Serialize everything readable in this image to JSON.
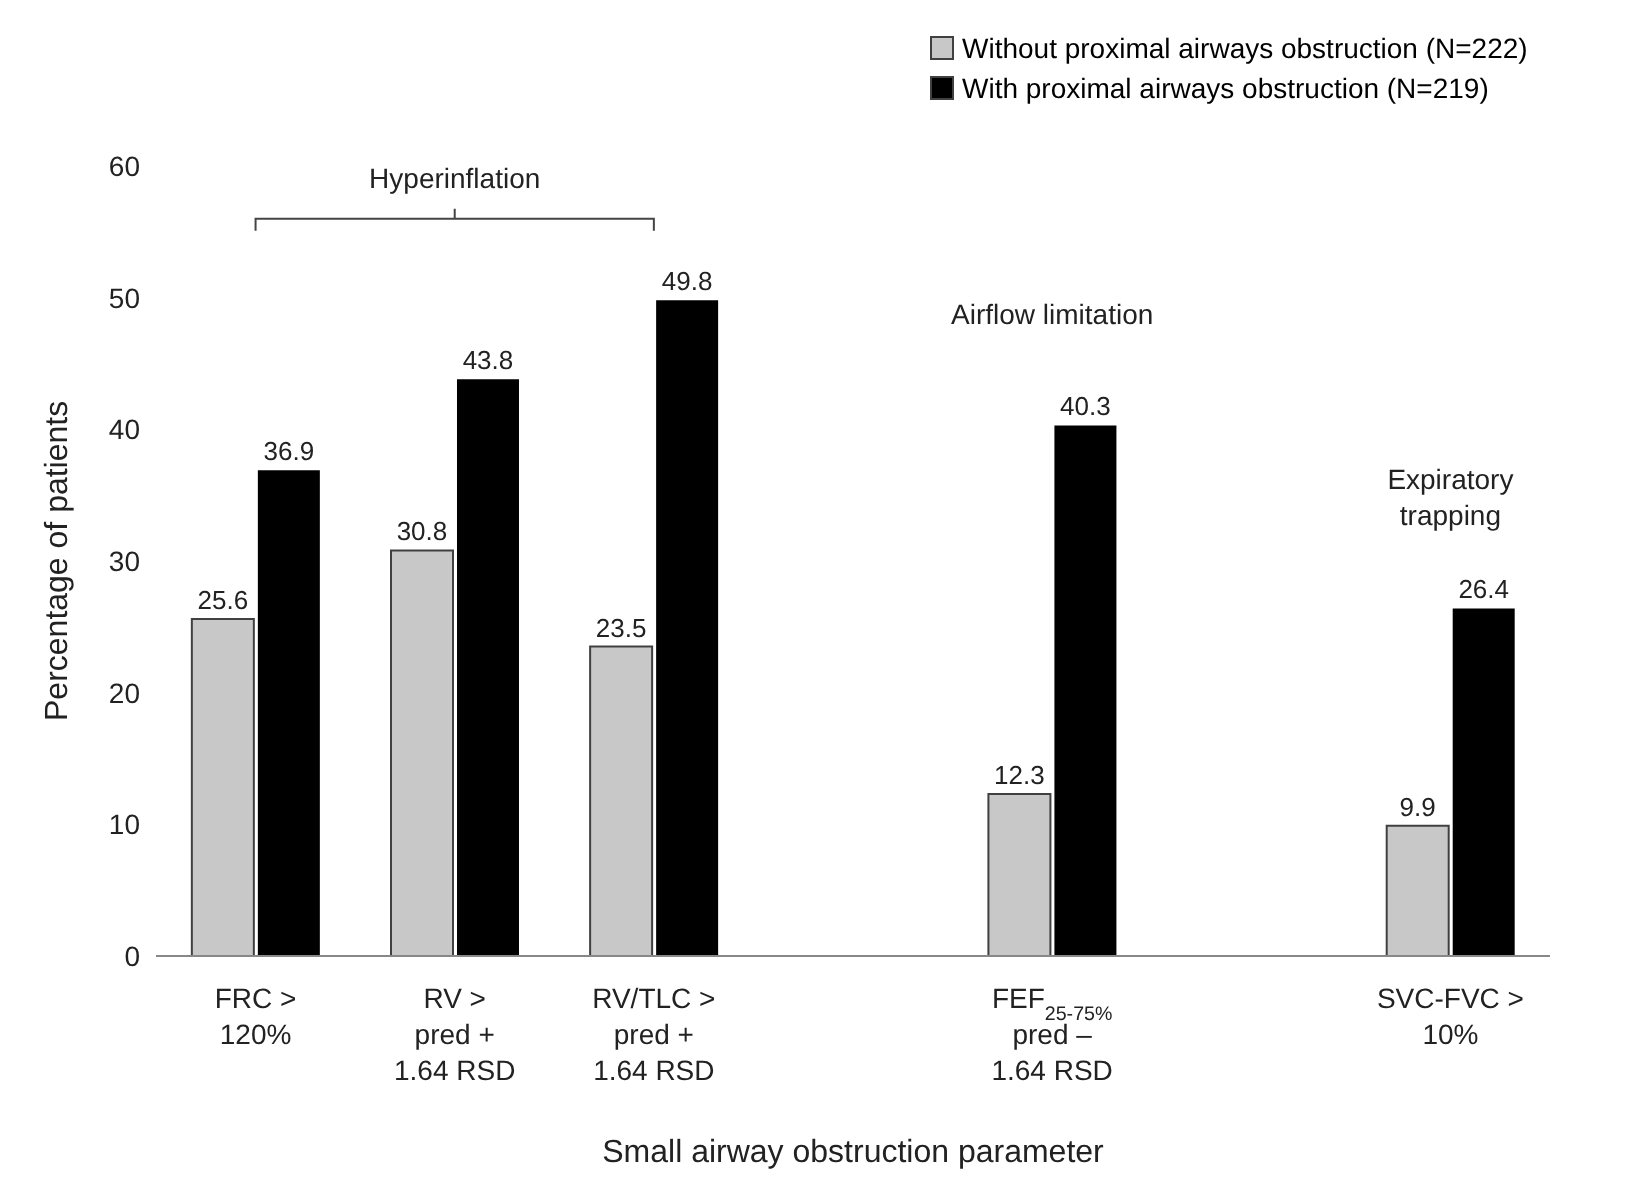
{
  "chart_data": {
    "type": "bar",
    "xlabel": "Small airway obstruction parameter",
    "ylabel": "Percentage of patients",
    "categories": [
      "FRC > 120%",
      "RV > pred + 1.64 RSD",
      "RV/TLC > pred + 1.64 RSD",
      null,
      "FEF$_{25-75%}$ pred – 1.64 RSD",
      null,
      "SVC-FVC > 10%"
    ],
    "series": [
      {
        "name": "Without proximal airways obstruction (N=222)",
        "color": "#c8c8c8",
        "values": [
          25.6,
          30.8,
          23.5,
          null,
          12.3,
          null,
          9.9
        ]
      },
      {
        "name": "With proximal airways obstruction (N=219)",
        "color": "#000000",
        "values": [
          36.9,
          43.8,
          49.8,
          null,
          40.3,
          null,
          26.4
        ]
      }
    ],
    "ylim": [
      0,
      60
    ],
    "yticks": [
      0,
      10,
      20,
      30,
      40,
      50,
      60
    ],
    "legend": "top right",
    "data_labels": true,
    "annotations": [
      "Hyperinflation",
      "Airflow limitation",
      "Expiratory trapping"
    ]
  }
}
